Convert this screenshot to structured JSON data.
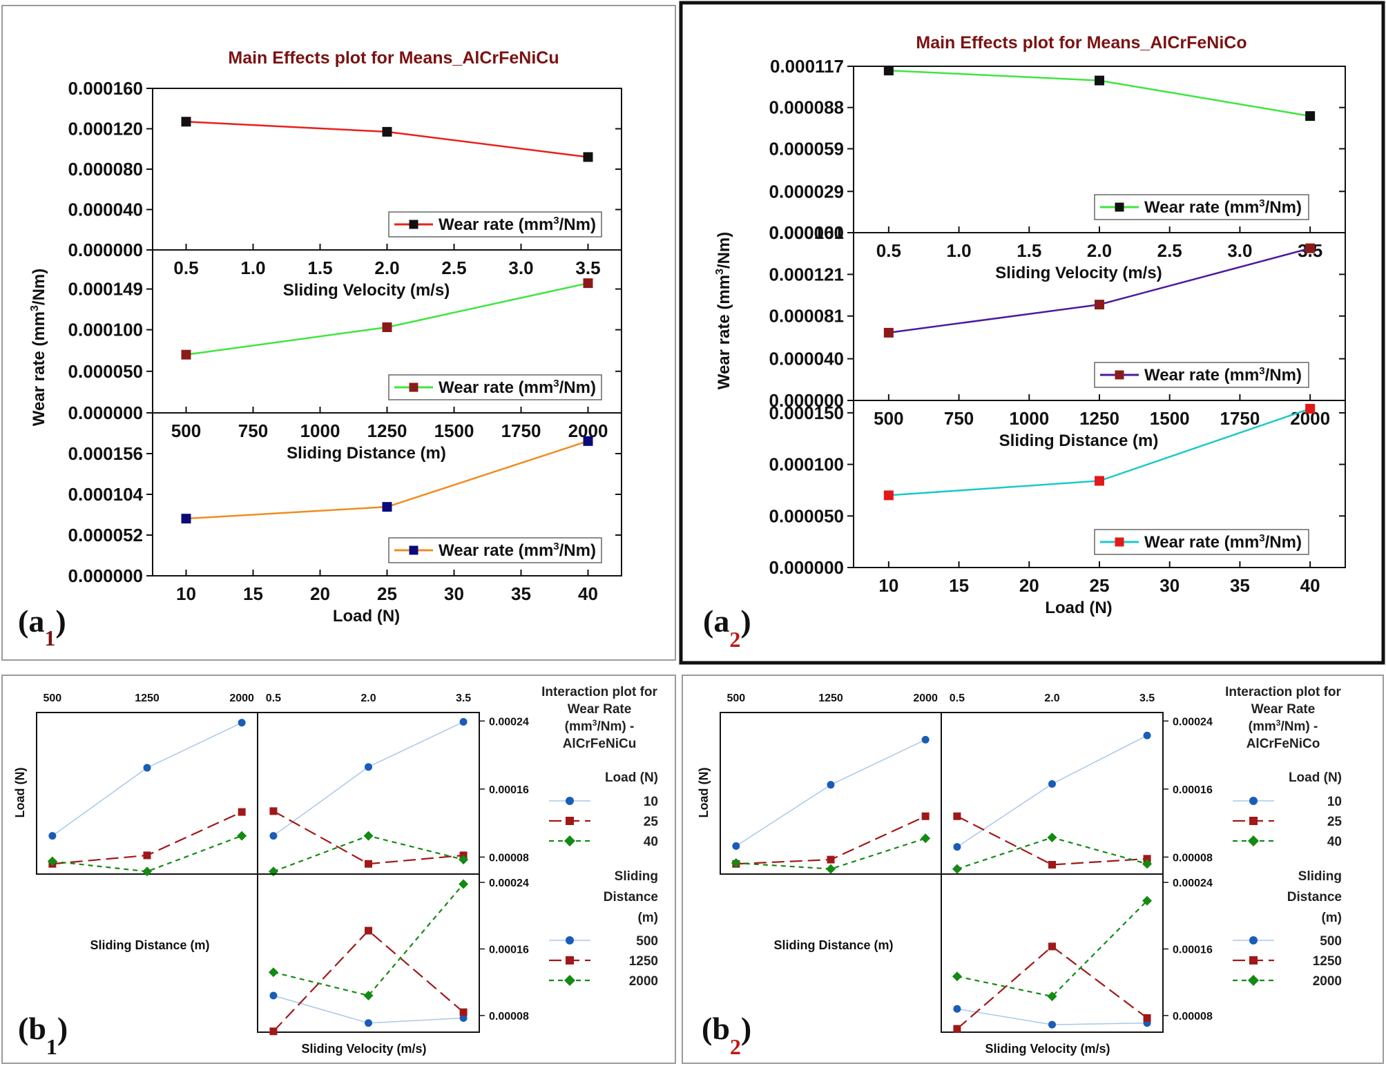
{
  "colors": {
    "title": "#7a1212",
    "red": "#e8201a",
    "green": "#3ee63e",
    "orange": "#f08c1e",
    "purple": "#4a1a9e",
    "cyan": "#1ec8c8",
    "black_marker": "#111111",
    "maroon_marker": "#8b1a1a",
    "navy_marker": "#0a0a7a",
    "red_marker": "#e21a1a",
    "blue_dot": "#1a5cb8",
    "dark_red_line": "#a01818",
    "dark_green": "#138a13",
    "light_blue_line": "#a8c8e8"
  },
  "panels": {
    "a1": {
      "label_main": "(a",
      "label_sub": "1",
      "label_close": ")",
      "title": "Main Effects plot for Means_AlCrFeNiCu",
      "ylabel": "Wear rate (mm3/Nm)"
    },
    "a2": {
      "label_main": "(a",
      "label_sub": "2",
      "label_close": ")",
      "title": "Main Effects plot for Means_AlCrFeNiCo",
      "ylabel": "Wear rate (mm3/Nm)"
    },
    "b1": {
      "label_main": "(b",
      "label_sub": "1",
      "label_close": ")",
      "title_lines": [
        "Interaction plot for",
        "Wear Rate",
        "(mm3/Nm) -",
        "AlCrFeNiCu"
      ],
      "load_legend_title": "Load (N)",
      "load_legend": [
        "10",
        "25",
        "40"
      ],
      "sd_legend_title": [
        "Sliding",
        "Distance",
        "(m)"
      ],
      "sd_legend": [
        "500",
        "1250",
        "2000"
      ],
      "top_sd_ticks": [
        "500",
        "1250",
        "2000"
      ],
      "top_sv_ticks": [
        "0.5",
        "2.0",
        "3.5"
      ],
      "right_ticks_top": [
        "0.00024",
        "0.00016",
        "0.00008"
      ],
      "right_ticks_bottom": [
        "0.00024",
        "0.00016",
        "0.00008"
      ],
      "ylabel": "Load (N)",
      "sd_label": "Sliding Distance (m)",
      "sv_label": "Sliding Velocity (m/s)"
    },
    "b2": {
      "label_main": "(b",
      "label_sub": "2",
      "label_close": ")",
      "title_lines": [
        "Interaction plot for",
        "Wear Rate",
        "(mm3/Nm) -",
        "AlCrFeNiCo"
      ],
      "load_legend_title": "Load (N)",
      "load_legend": [
        "10",
        "25",
        "40"
      ],
      "sd_legend_title": [
        "Sliding",
        "Distance",
        "(m)"
      ],
      "sd_legend": [
        "500",
        "1250",
        "2000"
      ],
      "top_sd_ticks": [
        "500",
        "1250",
        "2000"
      ],
      "top_sv_ticks": [
        "0.5",
        "2.0",
        "3.5"
      ],
      "right_ticks_top": [
        "0.00024",
        "0.00016",
        "0.00008"
      ],
      "right_ticks_bottom": [
        "0.00024",
        "0.00016",
        "0.00008"
      ],
      "ylabel": "Load (N)",
      "sd_label": "Sliding Distance (m)",
      "sv_label": "Sliding Velocity (m/s)"
    }
  },
  "chart_data": [
    {
      "id": "a1",
      "type": "line",
      "title": "Main Effects plot for Means_AlCrFeNiCu",
      "ylabel": "Wear rate (mm3/Nm)",
      "subplots": [
        {
          "xlabel": "Sliding Velocity (m/s)",
          "xlim": [
            0.25,
            3.75
          ],
          "xticks": [
            "0.5",
            "1.0",
            "1.5",
            "2.0",
            "2.5",
            "3.0",
            "3.5"
          ],
          "xtick_values": [
            0.5,
            1.0,
            1.5,
            2.0,
            2.5,
            3.0,
            3.5
          ],
          "ylim": [
            0,
            0.00016
          ],
          "yticks": [
            "0.000160",
            "0.000120",
            "0.000080",
            "0.000040",
            "0.000000"
          ],
          "ytick_values": [
            0.00016,
            0.00012,
            8e-05,
            4e-05,
            0
          ],
          "x": [
            0.5,
            2.0,
            3.5
          ],
          "y": [
            0.000127,
            0.000117,
            9.2e-05
          ],
          "legend": "Wear rate (mm3/Nm)",
          "line_color": "#e8201a",
          "marker_color": "#111111"
        },
        {
          "xlabel": "Sliding Distance (m)",
          "xlim": [
            375,
            2125
          ],
          "xticks": [
            "500",
            "750",
            "1000",
            "1250",
            "1500",
            "1750",
            "2000"
          ],
          "xtick_values": [
            500,
            750,
            1000,
            1250,
            1500,
            1750,
            2000
          ],
          "ylim": [
            0,
            0.000196
          ],
          "yticks": [
            "0.000149",
            "0.000100",
            "0.000050",
            "0.000000"
          ],
          "ytick_values": [
            0.000149,
            0.0001,
            5e-05,
            0
          ],
          "x": [
            500,
            1250,
            2000
          ],
          "y": [
            7e-05,
            0.000103,
            0.000156
          ],
          "legend": "Wear rate (mm3/Nm)",
          "line_color": "#3ee63e",
          "marker_color": "#8b1a1a"
        },
        {
          "xlabel": "Load (N)",
          "xlim": [
            7.5,
            42.5
          ],
          "xticks": [
            "10",
            "15",
            "20",
            "25",
            "30",
            "35",
            "40"
          ],
          "xtick_values": [
            10,
            15,
            20,
            25,
            30,
            35,
            40
          ],
          "ylim": [
            0,
            0.000208
          ],
          "yticks": [
            "0.000156",
            "0.000104",
            "0.000052",
            "0.000000"
          ],
          "ytick_values": [
            0.000156,
            0.000104,
            5.2e-05,
            0
          ],
          "x": [
            10,
            25,
            40
          ],
          "y": [
            7.3e-05,
            8.8e-05,
            0.000172
          ],
          "legend": "Wear rate (mm3/Nm)",
          "line_color": "#f08c1e",
          "marker_color": "#0a0a7a"
        }
      ]
    },
    {
      "id": "a2",
      "type": "line",
      "title": "Main Effects plot for Means_AlCrFeNiCo",
      "ylabel": "Wear rate (mm3/Nm)",
      "subplots": [
        {
          "xlabel": "Sliding Velocity (m/s)",
          "xlim": [
            0.25,
            3.75
          ],
          "xticks": [
            "0.5",
            "1.0",
            "1.5",
            "2.0",
            "2.5",
            "3.0",
            "3.5"
          ],
          "xtick_values": [
            0.5,
            1.0,
            1.5,
            2.0,
            2.5,
            3.0,
            3.5
          ],
          "ylim": [
            0,
            0.000117
          ],
          "yticks": [
            "0.000117",
            "0.000088",
            "0.000059",
            "0.000029",
            "0.000000"
          ],
          "ytick_values": [
            0.000117,
            8.8e-05,
            5.9e-05,
            2.9e-05,
            0
          ],
          "x": [
            0.5,
            2.0,
            3.5
          ],
          "y": [
            0.000114,
            0.000107,
            8.2e-05
          ],
          "legend": "Wear rate (mm3/Nm)",
          "line_color": "#3ee63e",
          "marker_color": "#111111"
        },
        {
          "xlabel": "Sliding Distance (m)",
          "xlim": [
            375,
            2125
          ],
          "xticks": [
            "500",
            "750",
            "1000",
            "1250",
            "1500",
            "1750",
            "2000"
          ],
          "xtick_values": [
            500,
            750,
            1000,
            1250,
            1500,
            1750,
            2000
          ],
          "ylim": [
            0,
            0.000161
          ],
          "yticks": [
            "0.000161",
            "0.000121",
            "0.000081",
            "0.000040",
            "0.000000"
          ],
          "ytick_values": [
            0.000161,
            0.000121,
            8.1e-05,
            4e-05,
            0
          ],
          "x": [
            500,
            1250,
            2000
          ],
          "y": [
            6.5e-05,
            9.2e-05,
            0.000146
          ],
          "legend": "Wear rate (mm3/Nm)",
          "line_color": "#4a1a9e",
          "marker_color": "#8b1a1a"
        },
        {
          "xlabel": "Load (N)",
          "xlim": [
            7.5,
            42.5
          ],
          "xticks": [
            "10",
            "15",
            "20",
            "25",
            "30",
            "35",
            "40"
          ],
          "xtick_values": [
            10,
            15,
            20,
            25,
            30,
            35,
            40
          ],
          "ylim": [
            0,
            0.000162
          ],
          "yticks": [
            "0.000150",
            "0.000100",
            "0.000050",
            "0.000000"
          ],
          "ytick_values": [
            0.00015,
            0.0001,
            5e-05,
            0
          ],
          "x": [
            10,
            25,
            40
          ],
          "y": [
            7e-05,
            8.4e-05,
            0.000154
          ],
          "legend": "Wear rate (mm3/Nm)",
          "line_color": "#1ec8c8",
          "marker_color": "#e21a1a"
        }
      ]
    },
    {
      "id": "b1",
      "type": "line",
      "title": "Interaction plot for Wear Rate (mm3/Nm) - AlCrFeNiCu",
      "ylim": [
        6e-05,
        0.00025
      ],
      "series_styles": {
        "s10": {
          "line": "#a8c8e8",
          "marker": "circle",
          "marker_color": "#1a5cb8",
          "dash": "solid"
        },
        "s25": {
          "line": "#a01818",
          "marker": "square",
          "marker_color": "#a01818",
          "dash": "long"
        },
        "s40": {
          "line": "#138a13",
          "marker": "diamond",
          "marker_color": "#138a13",
          "dash": "short"
        }
      },
      "subplots": [
        {
          "name": "Load x Sliding Distance",
          "x": [
            500,
            1250,
            2000
          ],
          "series": [
            {
              "name": "Load 10",
              "style": "s10",
              "values": [
                0.000105,
                0.000185,
                0.000238
              ]
            },
            {
              "name": "Load 25",
              "style": "s25",
              "values": [
                7.2e-05,
                8.2e-05,
                0.000133
              ]
            },
            {
              "name": "Load 40",
              "style": "s40",
              "values": [
                7.5e-05,
                6.3e-05,
                0.000105
              ]
            }
          ]
        },
        {
          "name": "Load x Sliding Velocity",
          "x": [
            0.5,
            2.0,
            3.5
          ],
          "series": [
            {
              "name": "Load 10",
              "style": "s10",
              "values": [
                0.000105,
                0.000186,
                0.000239
              ]
            },
            {
              "name": "Load 25",
              "style": "s25",
              "values": [
                0.000134,
                7.2e-05,
                8.2e-05
              ]
            },
            {
              "name": "Load 40",
              "style": "s40",
              "values": [
                6.3e-05,
                0.000105,
                7.7e-05
              ]
            }
          ]
        },
        {
          "name": "Sliding Distance x Sliding Velocity",
          "x": [
            0.5,
            2.0,
            3.5
          ],
          "series": [
            {
              "name": "SD 500",
              "style": "s10",
              "values": [
                0.000104,
                7.1e-05,
                7.7e-05
              ]
            },
            {
              "name": "SD 1250",
              "style": "s25",
              "values": [
                6.1e-05,
                0.000182,
                8.4e-05
              ]
            },
            {
              "name": "SD 2000",
              "style": "s40",
              "values": [
                0.000132,
                0.000104,
                0.000238
              ]
            }
          ]
        }
      ]
    },
    {
      "id": "b2",
      "type": "line",
      "title": "Interaction plot for Wear Rate (mm3/Nm) - AlCrFeNiCo",
      "ylim": [
        6e-05,
        0.00025
      ],
      "series_styles": {
        "s10": {
          "line": "#a8c8e8",
          "marker": "circle",
          "marker_color": "#1a5cb8",
          "dash": "solid"
        },
        "s25": {
          "line": "#a01818",
          "marker": "square",
          "marker_color": "#a01818",
          "dash": "long"
        },
        "s40": {
          "line": "#138a13",
          "marker": "diamond",
          "marker_color": "#138a13",
          "dash": "short"
        }
      },
      "subplots": [
        {
          "name": "Load x Sliding Distance",
          "x": [
            500,
            1250,
            2000
          ],
          "series": [
            {
              "name": "Load 10",
              "style": "s10",
              "values": [
                9.3e-05,
                0.000165,
                0.000218
              ]
            },
            {
              "name": "Load 25",
              "style": "s25",
              "values": [
                7.2e-05,
                7.7e-05,
                0.000128
              ]
            },
            {
              "name": "Load 40",
              "style": "s40",
              "values": [
                7.3e-05,
                6.6e-05,
                0.000102
              ]
            }
          ]
        },
        {
          "name": "Load x Sliding Velocity",
          "x": [
            0.5,
            2.0,
            3.5
          ],
          "series": [
            {
              "name": "Load 10",
              "style": "s10",
              "values": [
                9.2e-05,
                0.000166,
                0.000223
              ]
            },
            {
              "name": "Load 25",
              "style": "s25",
              "values": [
                0.000128,
                7.1e-05,
                7.8e-05
              ]
            },
            {
              "name": "Load 40",
              "style": "s40",
              "values": [
                6.6e-05,
                0.000103,
                7.2e-05
              ]
            }
          ]
        },
        {
          "name": "Sliding Distance x Sliding Velocity",
          "x": [
            0.5,
            2.0,
            3.5
          ],
          "series": [
            {
              "name": "SD 500",
              "style": "s10",
              "values": [
                8.8e-05,
                6.9e-05,
                7.1e-05
              ]
            },
            {
              "name": "SD 1250",
              "style": "s25",
              "values": [
                6.4e-05,
                0.000163,
                7.7e-05
              ]
            },
            {
              "name": "SD 2000",
              "style": "s40",
              "values": [
                0.000127,
                0.000103,
                0.000218
              ]
            }
          ]
        }
      ]
    }
  ]
}
